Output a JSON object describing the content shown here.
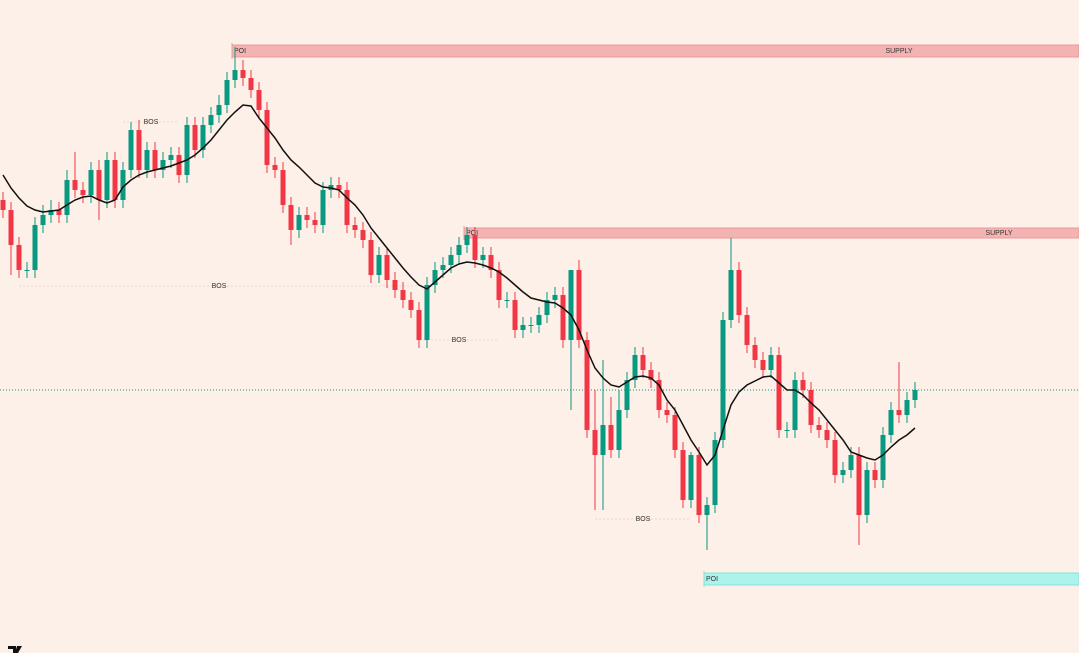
{
  "chart_data": {
    "type": "candlestick",
    "ylim": [
      0,
      650
    ],
    "up_color": "#089981",
    "down_color": "#f23645",
    "ma_color": "#111111",
    "price_line_color": "#089981",
    "open": [
      450,
      440,
      405,
      380,
      380,
      425,
      435,
      440,
      435,
      470,
      460,
      455,
      480,
      450,
      490,
      450,
      480,
      520,
      480,
      500,
      480,
      490,
      495,
      475,
      525,
      500,
      525,
      535,
      545,
      570,
      580,
      572,
      560,
      540,
      485,
      480,
      445,
      420,
      435,
      430,
      425,
      460,
      465,
      460,
      425,
      420,
      410,
      375,
      395,
      370,
      360,
      350,
      340,
      310,
      365,
      380,
      385,
      395,
      405,
      415,
      390,
      395,
      380,
      350,
      350,
      320,
      325,
      325,
      335,
      350,
      355,
      310,
      380,
      310,
      220,
      195,
      225,
      200,
      240,
      270,
      295,
      280,
      270,
      240,
      235,
      200,
      150,
      195,
      135,
      145,
      210,
      330,
      380,
      335,
      305,
      290,
      280,
      295,
      220,
      220,
      270,
      260,
      225,
      220,
      210,
      175,
      180,
      195,
      135,
      180,
      170,
      215,
      240,
      235,
      250
    ],
    "high": [
      458,
      448,
      413,
      388,
      433,
      445,
      450,
      448,
      480,
      498,
      468,
      488,
      490,
      498,
      498,
      488,
      528,
      530,
      508,
      508,
      498,
      503,
      503,
      533,
      533,
      533,
      543,
      555,
      578,
      603,
      590,
      580,
      568,
      548,
      493,
      488,
      453,
      443,
      443,
      438,
      468,
      473,
      473,
      468,
      433,
      428,
      418,
      403,
      403,
      378,
      368,
      358,
      348,
      373,
      388,
      393,
      403,
      413,
      423,
      423,
      403,
      403,
      388,
      358,
      358,
      333,
      333,
      343,
      358,
      363,
      363,
      380,
      390,
      318,
      260,
      290,
      253,
      260,
      278,
      303,
      303,
      288,
      278,
      248,
      243,
      208,
      198,
      203,
      153,
      218,
      338,
      412,
      388,
      343,
      313,
      298,
      303,
      303,
      228,
      278,
      278,
      268,
      233,
      228,
      218,
      188,
      203,
      203,
      188,
      188,
      223,
      248,
      288,
      258,
      268
    ],
    "low": [
      432,
      375,
      372,
      372,
      372,
      417,
      427,
      427,
      427,
      452,
      447,
      447,
      430,
      442,
      442,
      442,
      472,
      472,
      472,
      472,
      472,
      482,
      467,
      467,
      492,
      492,
      517,
      527,
      537,
      562,
      564,
      552,
      532,
      477,
      472,
      437,
      405,
      412,
      422,
      417,
      417,
      452,
      452,
      417,
      412,
      402,
      367,
      367,
      362,
      352,
      342,
      332,
      302,
      302,
      357,
      372,
      377,
      387,
      397,
      382,
      382,
      372,
      342,
      342,
      312,
      312,
      317,
      317,
      327,
      342,
      302,
      240,
      302,
      212,
      140,
      140,
      192,
      192,
      232,
      262,
      272,
      262,
      232,
      227,
      192,
      142,
      142,
      127,
      100,
      137,
      202,
      322,
      327,
      297,
      282,
      272,
      272,
      212,
      212,
      212,
      252,
      217,
      212,
      202,
      167,
      167,
      172,
      105,
      127,
      162,
      162,
      207,
      227,
      227,
      242
    ],
    "close": [
      440,
      405,
      380,
      380,
      425,
      435,
      440,
      435,
      470,
      460,
      455,
      480,
      450,
      490,
      450,
      480,
      520,
      480,
      500,
      480,
      490,
      495,
      475,
      525,
      500,
      525,
      535,
      545,
      570,
      580,
      572,
      560,
      540,
      485,
      480,
      445,
      420,
      435,
      430,
      425,
      460,
      465,
      460,
      425,
      420,
      410,
      375,
      395,
      370,
      360,
      350,
      340,
      310,
      365,
      380,
      385,
      395,
      405,
      415,
      390,
      395,
      380,
      350,
      350,
      320,
      325,
      325,
      335,
      350,
      355,
      310,
      380,
      310,
      220,
      195,
      225,
      200,
      240,
      270,
      295,
      280,
      270,
      240,
      235,
      200,
      150,
      195,
      135,
      145,
      210,
      330,
      380,
      335,
      305,
      290,
      280,
      295,
      220,
      220,
      270,
      260,
      225,
      220,
      210,
      175,
      180,
      195,
      135,
      180,
      170,
      215,
      240,
      235,
      250,
      260
    ],
    "ma": [
      475,
      462,
      452,
      444,
      440,
      438,
      439,
      440,
      445,
      450,
      453,
      454,
      450,
      447,
      450,
      463,
      470,
      475,
      478,
      480,
      482,
      484,
      487,
      490,
      495,
      502,
      510,
      520,
      530,
      538,
      545,
      544,
      532,
      522,
      512,
      500,
      490,
      483,
      475,
      467,
      463,
      462,
      460,
      452,
      445,
      435,
      422,
      412,
      402,
      392,
      382,
      373,
      365,
      361,
      368,
      375,
      382,
      386,
      388,
      387,
      385,
      382,
      378,
      372,
      365,
      358,
      352,
      350,
      348,
      347,
      342,
      335,
      320,
      300,
      282,
      272,
      265,
      263,
      268,
      273,
      274,
      272,
      265,
      250,
      240,
      225,
      210,
      198,
      185,
      195,
      220,
      245,
      258,
      265,
      269,
      273,
      274,
      267,
      260,
      260,
      255,
      247,
      240,
      230,
      220,
      210,
      198,
      195,
      192,
      190,
      195,
      203,
      210,
      215,
      222
    ],
    "zones": [
      {
        "label": "POI",
        "tag": "SUPPLY",
        "top": 605,
        "bottom": 593,
        "from_candle": 29,
        "color": "#f4b3b3",
        "edge": "#ee9a9a"
      },
      {
        "label": "POI",
        "tag": "SUPPLY",
        "top": 422,
        "bottom": 412,
        "from_candle": 58,
        "color": "#f4b3b3",
        "edge": "#ee9a9a"
      },
      {
        "label": "POI",
        "top": 77,
        "bottom": 65,
        "from_candle": 88,
        "color": "#aef2ec",
        "edge": "#7fe6dc"
      }
    ],
    "bos": [
      {
        "text": "BOS",
        "level": 528,
        "from_candle": 15,
        "to_candle": 22
      },
      {
        "text": "BOS",
        "level": 364,
        "from_candle": 2,
        "to_candle": 52
      },
      {
        "text": "BOS",
        "level": 310,
        "from_candle": 52,
        "to_candle": 62
      },
      {
        "text": "BOS",
        "level": 131,
        "from_candle": 74,
        "to_candle": 86
      }
    ]
  }
}
